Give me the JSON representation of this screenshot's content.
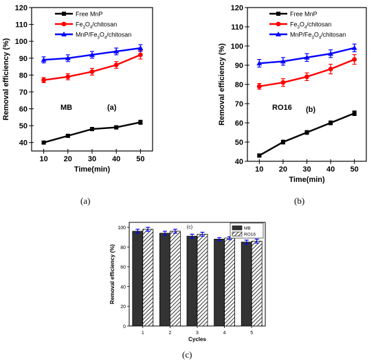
{
  "captions": [
    "(a)",
    "(b)",
    "(c)"
  ],
  "colors": {
    "black": "#000000",
    "red": "#ff0000",
    "blue": "#0000ff"
  },
  "chart_data": [
    {
      "type": "line",
      "xlabel": "Time(min)",
      "ylabel": "Removal efficiency (%)",
      "x": [
        10,
        20,
        30,
        40,
        50
      ],
      "xlim": [
        5,
        55
      ],
      "ylim": [
        35,
        120
      ],
      "yticks": [
        40,
        50,
        60,
        70,
        80,
        90,
        100,
        110,
        120
      ],
      "annotations": [
        "MB",
        "(a)"
      ],
      "series": [
        {
          "name": "Free MnP",
          "color": "#000000",
          "values": [
            40,
            44,
            48,
            49,
            52
          ],
          "errors": [
            0.7,
            0.8,
            1,
            1,
            1.2
          ]
        },
        {
          "name": "Fe3O4/chitosan",
          "color": "#ff0000",
          "values": [
            77,
            79,
            82,
            86,
            92
          ],
          "errors": [
            1.5,
            1.8,
            2,
            2,
            2.5
          ]
        },
        {
          "name": "MnP/Fe3O4/chitosan",
          "color": "#0000ff",
          "values": [
            89,
            90,
            92,
            94,
            96
          ],
          "errors": [
            1.8,
            2,
            2,
            2,
            2
          ]
        }
      ]
    },
    {
      "type": "line",
      "xlabel": "Time(min)",
      "ylabel": "Removal efficiency (%)",
      "x": [
        10,
        20,
        30,
        40,
        50
      ],
      "xlim": [
        5,
        55
      ],
      "ylim": [
        40,
        120
      ],
      "yticks": [
        40,
        50,
        60,
        70,
        80,
        90,
        100,
        110,
        120
      ],
      "annotations": [
        "RO16",
        "(b)"
      ],
      "series": [
        {
          "name": "Free MnP",
          "color": "#000000",
          "values": [
            43,
            50,
            55,
            60,
            65
          ],
          "errors": [
            0.8,
            1,
            1,
            1,
            1.2
          ]
        },
        {
          "name": "Fe3O4/chitosan",
          "color": "#ff0000",
          "values": [
            79,
            81,
            84,
            88,
            93
          ],
          "errors": [
            1.5,
            2,
            2,
            2.5,
            2.5
          ]
        },
        {
          "name": "MnP/Fe3O4/chitosan",
          "color": "#0000ff",
          "values": [
            91,
            92,
            94,
            96,
            99
          ],
          "errors": [
            2,
            2,
            2,
            2,
            2
          ]
        }
      ]
    },
    {
      "type": "bar",
      "xlabel": "Cycles",
      "ylabel": "Removal efficiency (%)",
      "categories": [
        "1",
        "2",
        "3",
        "4",
        "5"
      ],
      "ylim": [
        0,
        105
      ],
      "yticks": [
        0,
        20,
        40,
        60,
        80,
        100
      ],
      "annotations": [
        "(c)"
      ],
      "series": [
        {
          "name": "MB",
          "values": [
            96,
            94,
            91,
            88,
            85
          ],
          "errors": [
            2,
            2,
            2,
            1.5,
            2
          ]
        },
        {
          "name": "RO16",
          "values": [
            98,
            96,
            93,
            89,
            86
          ],
          "errors": [
            2,
            2,
            2,
            1.5,
            2
          ]
        }
      ]
    }
  ]
}
